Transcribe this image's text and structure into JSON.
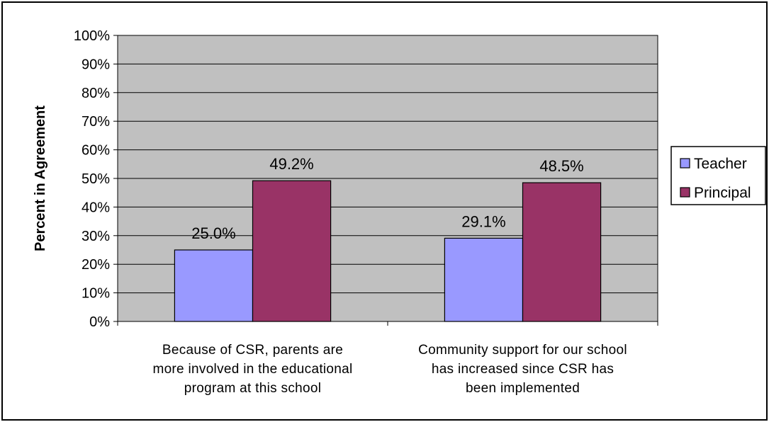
{
  "chart_data": {
    "type": "bar",
    "categories": [
      [
        "Because of CSR, parents are",
        "more involved in the educational",
        "program at this school"
      ],
      [
        "Community support for our school",
        "has increased since CSR has",
        "been implemented"
      ]
    ],
    "series": [
      {
        "name": "Teacher",
        "values": [
          25.0,
          29.1
        ],
        "labels": [
          "25.0%",
          "29.1%"
        ],
        "color": "#9999ff"
      },
      {
        "name": "Principal",
        "values": [
          49.2,
          48.5
        ],
        "labels": [
          "49.2%",
          "48.5%"
        ],
        "color": "#993366"
      }
    ],
    "ylabel": "Percent in Agreement",
    "xlabel": "",
    "title": "",
    "ylim": [
      0,
      100
    ],
    "yticks": [
      "0%",
      "10%",
      "20%",
      "30%",
      "40%",
      "50%",
      "60%",
      "70%",
      "80%",
      "90%",
      "100%"
    ],
    "grid": true,
    "legend_position": "right",
    "plot_background": "#c0c0c0"
  }
}
